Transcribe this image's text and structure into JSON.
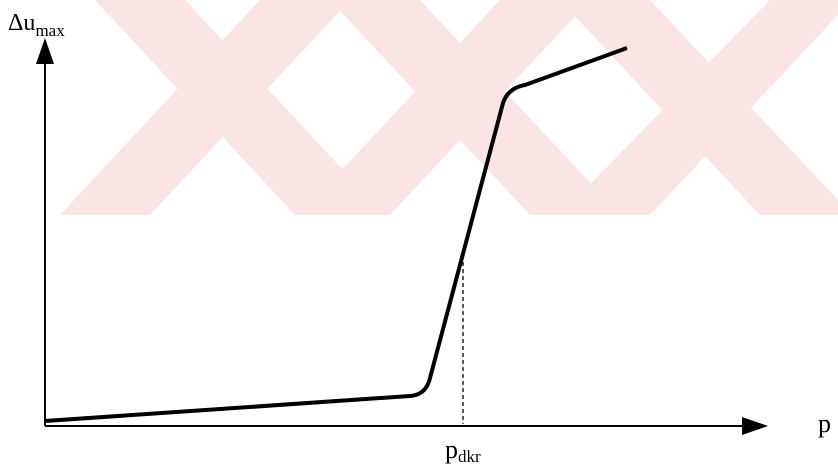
{
  "y_axis": {
    "label": "Δu",
    "subscript": "max"
  },
  "x_axis": {
    "label": "p"
  },
  "marker": {
    "label": "p",
    "subscript": "dkr"
  }
}
